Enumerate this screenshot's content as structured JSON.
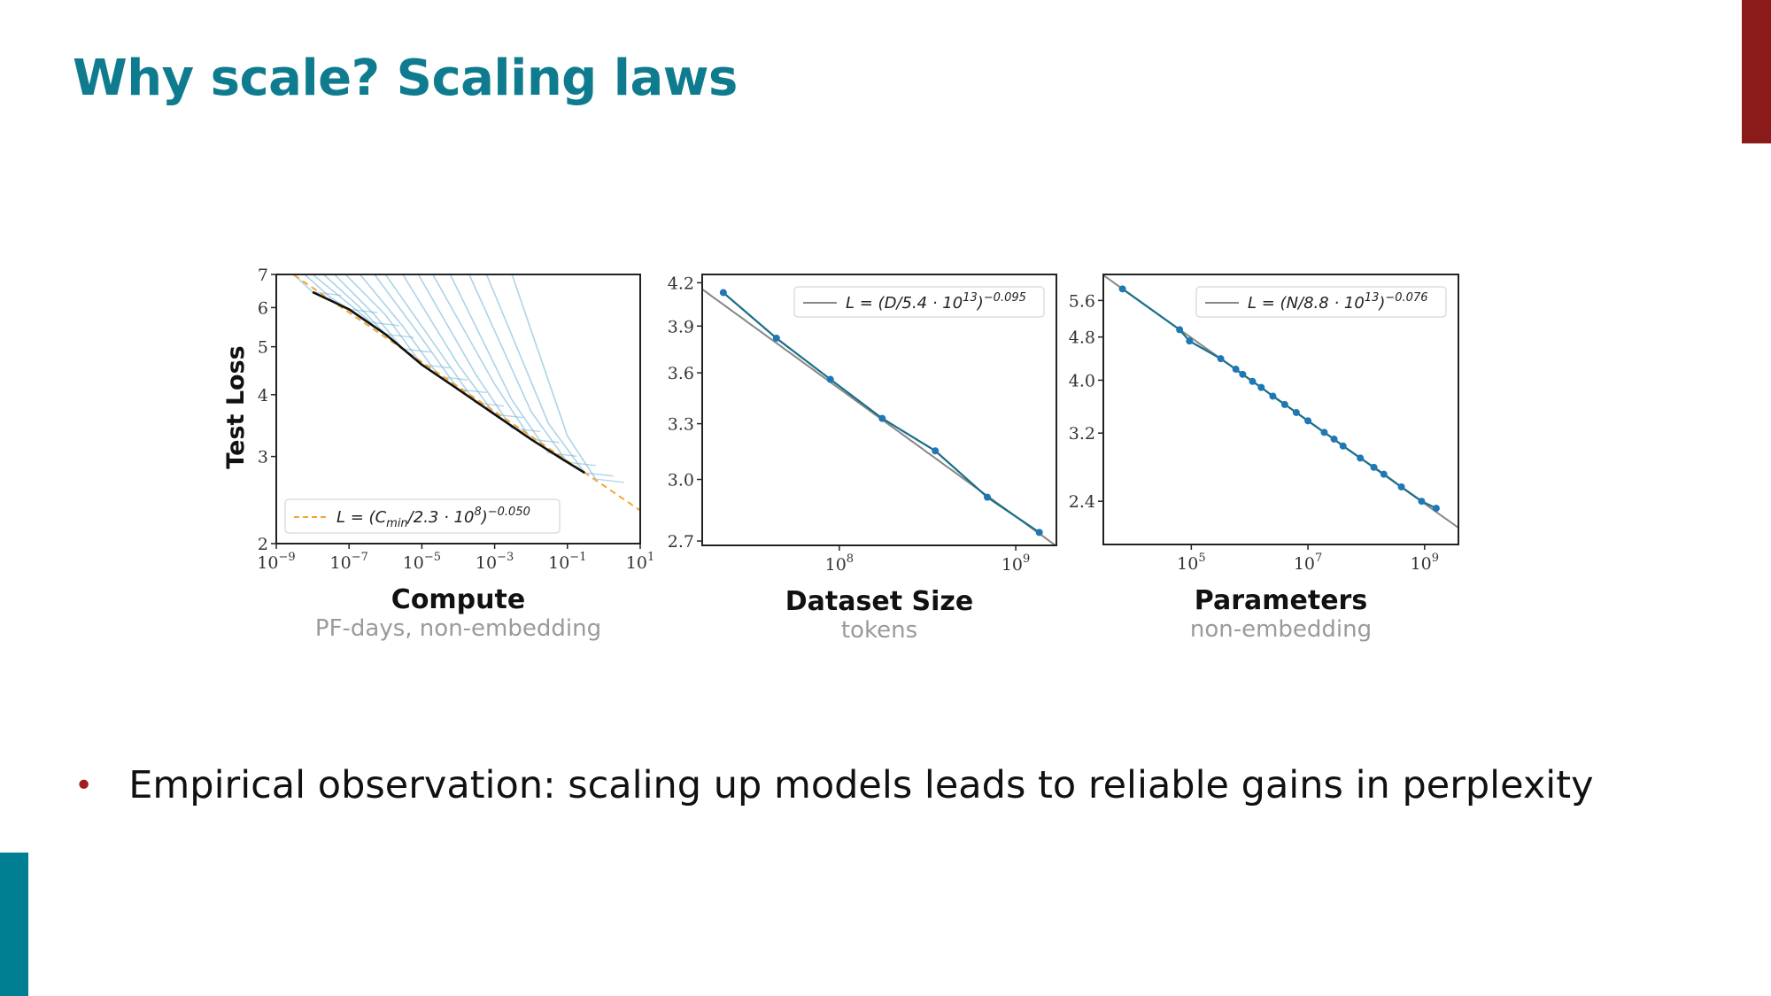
{
  "slide": {
    "title": "Why scale? Scaling laws",
    "bullet": "Empirical observation: scaling up models leads to reliable gains in perplexity",
    "colors": {
      "title": "#0e7c8e",
      "accent_red": "#8b1a1a",
      "accent_teal": "#007f93",
      "bullet": "#a21d1d"
    }
  },
  "chart_data": [
    {
      "type": "line",
      "xscale": "log",
      "yscale": "log",
      "xlim": [
        1e-09,
        10
      ],
      "ylim": [
        2,
        7
      ],
      "xlabel": "Compute",
      "xsublabel": "PF-days, non-embedding",
      "ylabel": "Test Loss",
      "xticks": [
        {
          "v": 1e-09,
          "base": "10",
          "exp": "−9"
        },
        {
          "v": 1e-07,
          "base": "10",
          "exp": "−7"
        },
        {
          "v": 1e-05,
          "base": "10",
          "exp": "−5"
        },
        {
          "v": 0.001,
          "base": "10",
          "exp": "−3"
        },
        {
          "v": 0.1,
          "base": "10",
          "exp": "−1"
        },
        {
          "v": 10,
          "base": "10",
          "exp": "1"
        }
      ],
      "yticks": [
        {
          "v": 2,
          "label": "2"
        },
        {
          "v": 3,
          "label": "3"
        },
        {
          "v": 4,
          "label": "4"
        },
        {
          "v": 5,
          "label": "5"
        },
        {
          "v": 6,
          "label": "6"
        },
        {
          "v": 7,
          "label": "7"
        }
      ],
      "fit": {
        "a": 230000000.0,
        "alpha": 0.05,
        "color": "#f0a830",
        "style": "dashed"
      },
      "legend": {
        "position": "bottom-left",
        "segments": [
          {
            "t": "L = (C"
          },
          {
            "t": "min",
            "sub": true
          },
          {
            "t": "/2.3 · 10"
          },
          {
            "t": "8",
            "sup": true
          },
          {
            "t": ")"
          },
          {
            "t": "−0.050",
            "sup": true
          }
        ]
      },
      "frontier": {
        "color": "#111111",
        "x": [
          1e-08,
          1e-07,
          1e-06,
          1e-05,
          0.0001,
          0.001,
          0.01,
          0.1,
          0.3
        ],
        "y": [
          6.45,
          5.95,
          5.3,
          4.6,
          4.1,
          3.65,
          3.25,
          2.92,
          2.78
        ]
      },
      "learning_curves_color": "#6aaed6",
      "learning_curves": [
        {
          "x": [
            3e-09,
            1e-08
          ],
          "y": [
            7,
            6.45
          ]
        },
        {
          "x": [
            6e-09,
            3e-08,
            1e-07
          ],
          "y": [
            7,
            6.3,
            5.95
          ]
        },
        {
          "x": [
            1e-08,
            1e-07,
            4e-07
          ],
          "y": [
            7,
            6.1,
            5.6
          ]
        },
        {
          "x": [
            2e-08,
            2e-07,
            1e-06
          ],
          "y": [
            7,
            6.0,
            5.3
          ]
        },
        {
          "x": [
            4e-08,
            5e-07,
            3e-06
          ],
          "y": [
            7,
            5.8,
            4.95
          ]
        },
        {
          "x": [
            8e-08,
            1e-06,
            1e-05
          ],
          "y": [
            7,
            5.8,
            4.6
          ]
        },
        {
          "x": [
            2e-07,
            3e-06,
            3e-05
          ],
          "y": [
            7,
            5.5,
            4.35
          ]
        },
        {
          "x": [
            5e-07,
            1e-05,
            0.0001
          ],
          "y": [
            7,
            5.2,
            4.1
          ]
        },
        {
          "x": [
            1e-06,
            3e-05,
            0.0003
          ],
          "y": [
            7,
            4.9,
            3.85
          ]
        },
        {
          "x": [
            3e-06,
            0.0001,
            0.001
          ],
          "y": [
            7,
            4.6,
            3.65
          ]
        },
        {
          "x": [
            8e-06,
            0.0003,
            0.003
          ],
          "y": [
            7,
            4.4,
            3.42
          ]
        },
        {
          "x": [
            2e-05,
            0.001,
            0.01
          ],
          "y": [
            7,
            4.2,
            3.25
          ]
        },
        {
          "x": [
            6e-05,
            0.003,
            0.03
          ],
          "y": [
            7,
            3.9,
            3.05
          ]
        },
        {
          "x": [
            0.0002,
            0.01,
            0.1
          ],
          "y": [
            7,
            3.7,
            2.92
          ]
        },
        {
          "x": [
            0.0006,
            0.03,
            0.3
          ],
          "y": [
            7,
            3.5,
            2.78
          ]
        },
        {
          "x": [
            0.003,
            0.1,
            0.6
          ],
          "y": [
            7,
            3.3,
            2.7
          ]
        }
      ]
    },
    {
      "type": "line",
      "xscale": "log",
      "yscale": "log",
      "xlim": [
        16700000.0,
        1700000000.0
      ],
      "ylim": [
        2.68,
        4.26
      ],
      "xlabel": "Dataset Size",
      "xsublabel": "tokens",
      "xticks": [
        {
          "v": 100000000.0,
          "base": "10",
          "exp": "8"
        },
        {
          "v": 1000000000.0,
          "base": "10",
          "exp": "9"
        }
      ],
      "yticks": [
        {
          "v": 2.7,
          "label": "2.7"
        },
        {
          "v": 3.0,
          "label": "3.0"
        },
        {
          "v": 3.3,
          "label": "3.3"
        },
        {
          "v": 3.6,
          "label": "3.6"
        },
        {
          "v": 3.9,
          "label": "3.9"
        },
        {
          "v": 4.2,
          "label": "4.2"
        }
      ],
      "fit": {
        "a": 54000000000000.0,
        "alpha": 0.095,
        "color": "#888888",
        "style": "solid"
      },
      "legend": {
        "position": "top-right",
        "segments": [
          {
            "t": "L = (D/5.4 · 10"
          },
          {
            "t": "13",
            "sup": true
          },
          {
            "t": ")"
          },
          {
            "t": "−0.095",
            "sup": true
          }
        ]
      },
      "series": {
        "color": "#1f77b4",
        "x": [
          22000000.0,
          44000000.0,
          89000000.0,
          175000000.0,
          350000000.0,
          690000000.0,
          1360000000.0
        ],
        "y": [
          4.13,
          3.82,
          3.56,
          3.33,
          3.15,
          2.91,
          2.74
        ]
      }
    },
    {
      "type": "line",
      "xscale": "log",
      "yscale": "log",
      "xlim": [
        3100.0,
        3800000000.0
      ],
      "ylim": [
        2.0,
        6.25
      ],
      "xlabel": "Parameters",
      "xsublabel": "non-embedding",
      "xticks": [
        {
          "v": 100000.0,
          "base": "10",
          "exp": "5"
        },
        {
          "v": 10000000.0,
          "base": "10",
          "exp": "7"
        },
        {
          "v": 1000000000.0,
          "base": "10",
          "exp": "9"
        }
      ],
      "yticks": [
        {
          "v": 2.4,
          "label": "2.4"
        },
        {
          "v": 3.2,
          "label": "3.2"
        },
        {
          "v": 4.0,
          "label": "4.0"
        },
        {
          "v": 4.8,
          "label": "4.8"
        },
        {
          "v": 5.6,
          "label": "5.6"
        }
      ],
      "fit": {
        "a": 88000000000000.0,
        "alpha": 0.076,
        "color": "#888888",
        "style": "solid"
      },
      "legend": {
        "position": "top-right",
        "segments": [
          {
            "t": "L = (N/8.8 · 10"
          },
          {
            "t": "13",
            "sup": true
          },
          {
            "t": ")"
          },
          {
            "t": "−0.076",
            "sup": true
          }
        ]
      },
      "series": {
        "color": "#1f77b4",
        "x": [
          6600.0,
          63000.0,
          93000.0,
          320000.0,
          580000.0,
          760000.0,
          1120000.0,
          1580000.0,
          2500000.0,
          4000000.0,
          6300000.0,
          10000000.0,
          19000000.0,
          28000000.0,
          40000000.0,
          79000000.0,
          135000000.0,
          200000000.0,
          400000000.0,
          890000000.0,
          1580000000.0
        ],
        "y": [
          5.88,
          4.95,
          4.72,
          4.38,
          4.19,
          4.1,
          3.98,
          3.88,
          3.74,
          3.61,
          3.49,
          3.37,
          3.21,
          3.12,
          3.03,
          2.88,
          2.77,
          2.69,
          2.55,
          2.4,
          2.33
        ]
      }
    }
  ]
}
